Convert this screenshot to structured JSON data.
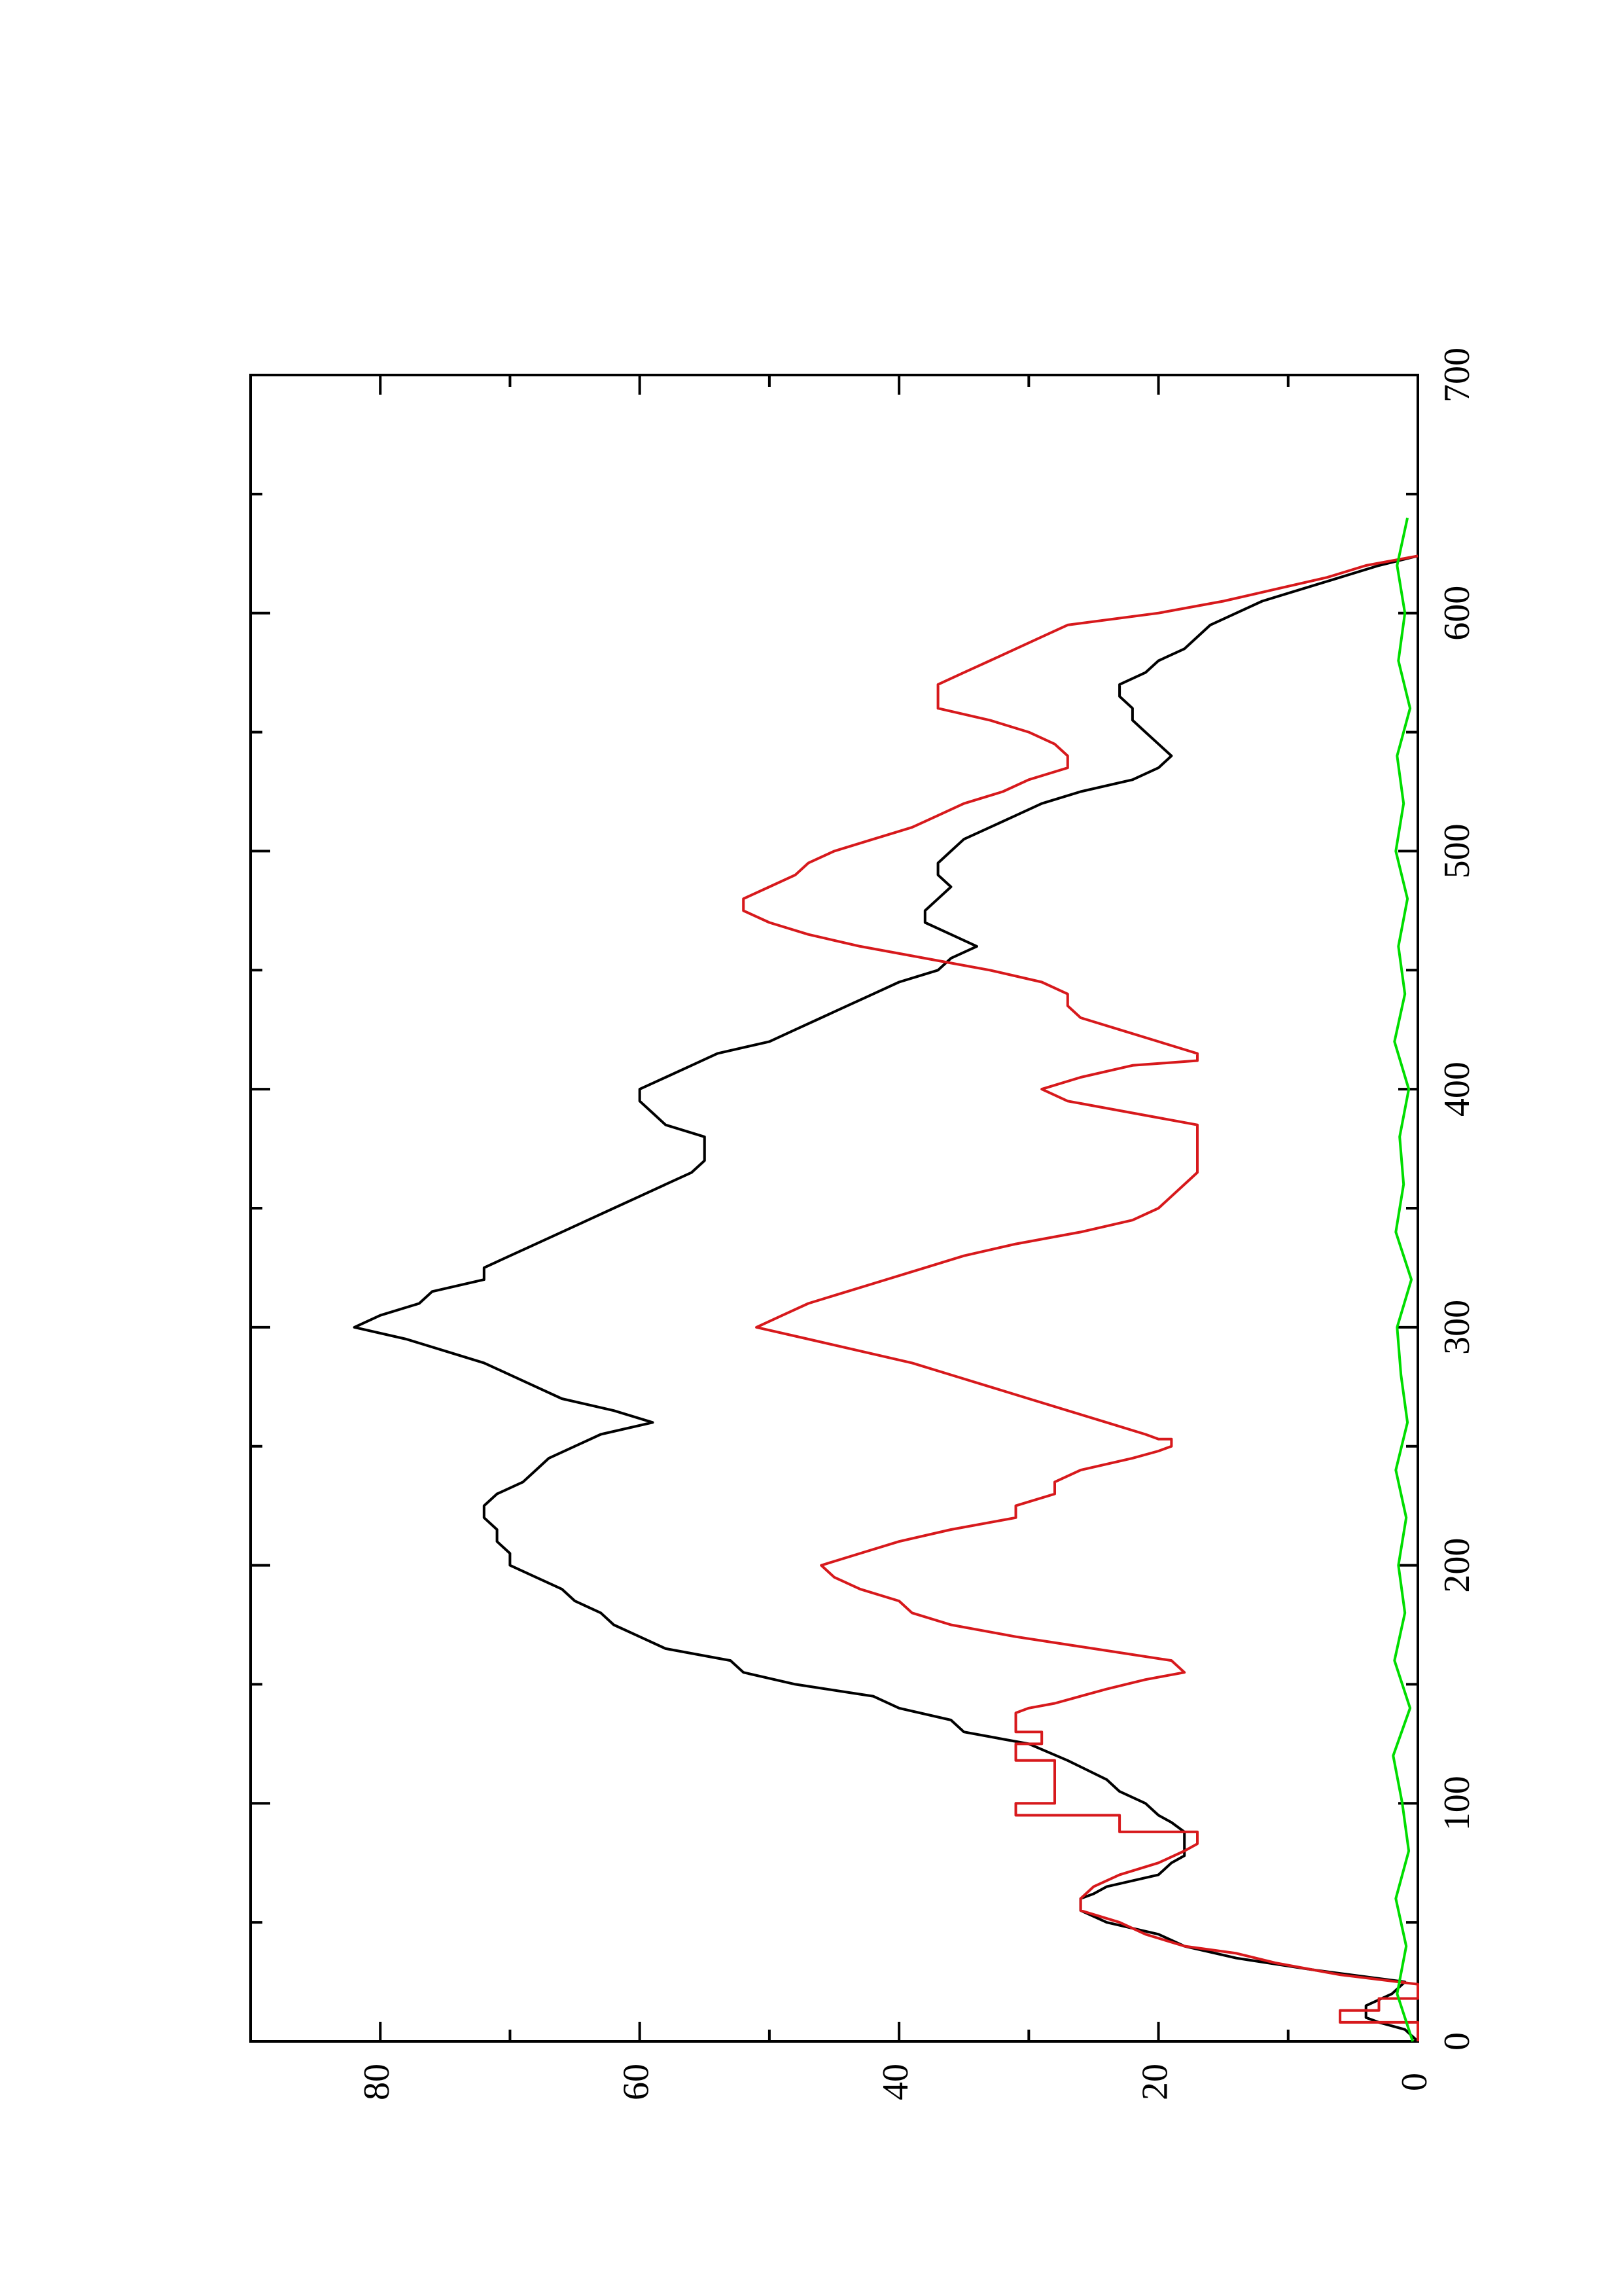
{
  "chart_data": {
    "type": "line",
    "orientation": "rotated 90° (page in landscape; x axis runs vertically)",
    "x_range": [
      0,
      700
    ],
    "y_range": [
      0,
      90
    ],
    "x_ticks": [
      0,
      100,
      200,
      300,
      400,
      500,
      600,
      700
    ],
    "x_tick_labels": [
      "0",
      "100",
      "200",
      "300",
      "400",
      "500",
      "600",
      "700"
    ],
    "y_ticks": [
      0,
      20,
      40,
      60,
      80
    ],
    "y_tick_labels": [
      "0",
      "20",
      "40",
      "60",
      "80"
    ],
    "grid": false,
    "series": [
      {
        "color": "#000000",
        "points": [
          [
            0,
            0
          ],
          [
            5,
            1
          ],
          [
            8,
            3
          ],
          [
            10,
            4
          ],
          [
            15,
            4
          ],
          [
            20,
            2
          ],
          [
            25,
            1
          ],
          [
            30,
            8
          ],
          [
            35,
            14
          ],
          [
            40,
            18
          ],
          [
            45,
            20
          ],
          [
            50,
            24
          ],
          [
            55,
            26
          ],
          [
            60,
            26
          ],
          [
            62,
            25
          ],
          [
            65,
            24
          ],
          [
            70,
            20
          ],
          [
            75,
            19
          ],
          [
            78,
            18
          ],
          [
            82,
            18
          ],
          [
            88,
            18
          ],
          [
            92,
            19
          ],
          [
            95,
            20
          ],
          [
            100,
            21
          ],
          [
            105,
            23
          ],
          [
            110,
            24
          ],
          [
            118,
            27
          ],
          [
            125,
            30
          ],
          [
            130,
            35
          ],
          [
            135,
            36
          ],
          [
            140,
            40
          ],
          [
            145,
            42
          ],
          [
            150,
            48
          ],
          [
            155,
            52
          ],
          [
            160,
            53
          ],
          [
            165,
            58
          ],
          [
            170,
            60
          ],
          [
            175,
            62
          ],
          [
            180,
            63
          ],
          [
            185,
            65
          ],
          [
            190,
            66
          ],
          [
            195,
            68
          ],
          [
            200,
            70
          ],
          [
            205,
            70
          ],
          [
            210,
            71
          ],
          [
            215,
            71
          ],
          [
            220,
            72
          ],
          [
            225,
            72
          ],
          [
            230,
            71
          ],
          [
            235,
            69
          ],
          [
            240,
            68
          ],
          [
            245,
            67
          ],
          [
            250,
            65
          ],
          [
            255,
            63
          ],
          [
            260,
            59
          ],
          [
            265,
            62
          ],
          [
            270,
            66
          ],
          [
            275,
            68
          ],
          [
            280,
            70
          ],
          [
            285,
            72
          ],
          [
            290,
            75
          ],
          [
            295,
            78
          ],
          [
            300,
            82
          ],
          [
            305,
            80
          ],
          [
            310,
            77
          ],
          [
            315,
            76
          ],
          [
            320,
            72
          ],
          [
            325,
            72
          ],
          [
            330,
            70
          ],
          [
            335,
            68
          ],
          [
            340,
            66
          ],
          [
            345,
            64
          ],
          [
            350,
            62
          ],
          [
            355,
            60
          ],
          [
            360,
            58
          ],
          [
            365,
            56
          ],
          [
            370,
            55
          ],
          [
            375,
            55
          ],
          [
            380,
            55
          ],
          [
            385,
            58
          ],
          [
            390,
            59
          ],
          [
            395,
            60
          ],
          [
            400,
            60
          ],
          [
            405,
            58
          ],
          [
            410,
            56
          ],
          [
            415,
            54
          ],
          [
            420,
            50
          ],
          [
            425,
            48
          ],
          [
            430,
            46
          ],
          [
            435,
            44
          ],
          [
            440,
            42
          ],
          [
            445,
            40
          ],
          [
            450,
            37
          ],
          [
            455,
            36
          ],
          [
            460,
            34
          ],
          [
            465,
            36
          ],
          [
            470,
            38
          ],
          [
            475,
            38
          ],
          [
            480,
            37
          ],
          [
            485,
            36
          ],
          [
            490,
            37
          ],
          [
            495,
            37
          ],
          [
            500,
            36
          ],
          [
            505,
            35
          ],
          [
            510,
            33
          ],
          [
            515,
            31
          ],
          [
            520,
            29
          ],
          [
            525,
            26
          ],
          [
            530,
            22
          ],
          [
            535,
            20
          ],
          [
            540,
            19
          ],
          [
            545,
            20
          ],
          [
            550,
            21
          ],
          [
            555,
            22
          ],
          [
            560,
            22
          ],
          [
            565,
            23
          ],
          [
            570,
            23
          ],
          [
            575,
            21
          ],
          [
            580,
            20
          ],
          [
            585,
            18
          ],
          [
            590,
            17
          ],
          [
            595,
            16
          ],
          [
            600,
            14
          ],
          [
            605,
            12
          ],
          [
            610,
            9
          ],
          [
            615,
            6
          ],
          [
            620,
            3
          ],
          [
            624,
            0
          ]
        ]
      },
      {
        "color": "#d7191c",
        "points": [
          [
            0,
            0
          ],
          [
            8,
            0
          ],
          [
            8,
            6
          ],
          [
            13,
            6
          ],
          [
            13,
            3
          ],
          [
            18,
            3
          ],
          [
            18,
            0
          ],
          [
            24,
            0
          ],
          [
            28,
            6
          ],
          [
            33,
            11
          ],
          [
            37,
            14
          ],
          [
            40,
            18
          ],
          [
            45,
            21
          ],
          [
            50,
            23
          ],
          [
            55,
            26
          ],
          [
            60,
            26
          ],
          [
            65,
            25
          ],
          [
            70,
            23
          ],
          [
            75,
            20
          ],
          [
            80,
            18
          ],
          [
            83,
            17
          ],
          [
            88,
            17
          ],
          [
            88,
            23
          ],
          [
            95,
            23
          ],
          [
            95,
            31
          ],
          [
            100,
            31
          ],
          [
            100,
            28
          ],
          [
            105,
            28
          ],
          [
            110,
            28
          ],
          [
            115,
            28
          ],
          [
            118,
            28
          ],
          [
            118,
            31
          ],
          [
            125,
            31
          ],
          [
            125,
            29
          ],
          [
            130,
            29
          ],
          [
            130,
            31
          ],
          [
            138,
            31
          ],
          [
            140,
            30
          ],
          [
            142,
            28
          ],
          [
            145,
            26
          ],
          [
            148,
            24
          ],
          [
            152,
            21
          ],
          [
            155,
            18
          ],
          [
            160,
            19
          ],
          [
            165,
            25
          ],
          [
            170,
            31
          ],
          [
            175,
            36
          ],
          [
            180,
            39
          ],
          [
            185,
            40
          ],
          [
            190,
            43
          ],
          [
            195,
            45
          ],
          [
            200,
            46
          ],
          [
            205,
            43
          ],
          [
            210,
            40
          ],
          [
            215,
            36
          ],
          [
            220,
            31
          ],
          [
            225,
            31
          ],
          [
            230,
            28
          ],
          [
            235,
            28
          ],
          [
            240,
            26
          ],
          [
            245,
            22
          ],
          [
            248,
            20
          ],
          [
            250,
            19
          ],
          [
            253,
            19
          ],
          [
            253,
            20
          ],
          [
            255,
            21
          ],
          [
            260,
            24
          ],
          [
            265,
            27
          ],
          [
            270,
            30
          ],
          [
            275,
            33
          ],
          [
            280,
            36
          ],
          [
            285,
            39
          ],
          [
            290,
            43
          ],
          [
            295,
            47
          ],
          [
            300,
            51
          ],
          [
            305,
            49
          ],
          [
            310,
            47
          ],
          [
            315,
            44
          ],
          [
            320,
            41
          ],
          [
            325,
            38
          ],
          [
            330,
            35
          ],
          [
            335,
            31
          ],
          [
            340,
            26
          ],
          [
            345,
            22
          ],
          [
            350,
            20
          ],
          [
            355,
            19
          ],
          [
            360,
            18
          ],
          [
            365,
            17
          ],
          [
            370,
            17
          ],
          [
            375,
            17
          ],
          [
            380,
            17
          ],
          [
            385,
            17
          ],
          [
            390,
            22
          ],
          [
            395,
            27
          ],
          [
            400,
            29
          ],
          [
            405,
            26
          ],
          [
            410,
            22
          ],
          [
            412,
            17
          ],
          [
            415,
            17
          ],
          [
            420,
            20
          ],
          [
            425,
            23
          ],
          [
            430,
            26
          ],
          [
            435,
            27
          ],
          [
            440,
            27
          ],
          [
            445,
            29
          ],
          [
            450,
            33
          ],
          [
            455,
            38
          ],
          [
            460,
            43
          ],
          [
            465,
            47
          ],
          [
            470,
            50
          ],
          [
            475,
            52
          ],
          [
            480,
            52
          ],
          [
            485,
            50
          ],
          [
            490,
            48
          ],
          [
            495,
            47
          ],
          [
            500,
            45
          ],
          [
            505,
            42
          ],
          [
            510,
            39
          ],
          [
            515,
            37
          ],
          [
            520,
            35
          ],
          [
            525,
            32
          ],
          [
            530,
            30
          ],
          [
            535,
            27
          ],
          [
            540,
            27
          ],
          [
            545,
            28
          ],
          [
            550,
            30
          ],
          [
            555,
            33
          ],
          [
            560,
            37
          ],
          [
            565,
            37
          ],
          [
            570,
            37
          ],
          [
            575,
            35
          ],
          [
            580,
            33
          ],
          [
            585,
            31
          ],
          [
            590,
            29
          ],
          [
            595,
            27
          ],
          [
            600,
            20
          ],
          [
            605,
            15
          ],
          [
            610,
            11
          ],
          [
            615,
            7
          ],
          [
            620,
            4
          ],
          [
            624,
            0
          ]
        ]
      },
      {
        "color": "#00dd00",
        "points": [
          [
            0,
            0.4
          ],
          [
            20,
            1.6
          ],
          [
            40,
            0.9
          ],
          [
            60,
            1.7
          ],
          [
            80,
            0.7
          ],
          [
            100,
            1.2
          ],
          [
            120,
            1.9
          ],
          [
            140,
            0.6
          ],
          [
            160,
            1.8
          ],
          [
            180,
            1.0
          ],
          [
            200,
            1.5
          ],
          [
            220,
            0.9
          ],
          [
            240,
            1.7
          ],
          [
            260,
            0.8
          ],
          [
            280,
            1.3
          ],
          [
            300,
            1.6
          ],
          [
            320,
            0.5
          ],
          [
            340,
            1.7
          ],
          [
            360,
            1.1
          ],
          [
            380,
            1.4
          ],
          [
            400,
            0.7
          ],
          [
            420,
            1.8
          ],
          [
            440,
            1.0
          ],
          [
            460,
            1.5
          ],
          [
            480,
            0.8
          ],
          [
            500,
            1.7
          ],
          [
            520,
            1.1
          ],
          [
            540,
            1.6
          ],
          [
            560,
            0.6
          ],
          [
            580,
            1.5
          ],
          [
            600,
            1.0
          ],
          [
            620,
            1.6
          ],
          [
            640,
            0.8
          ]
        ]
      }
    ]
  }
}
